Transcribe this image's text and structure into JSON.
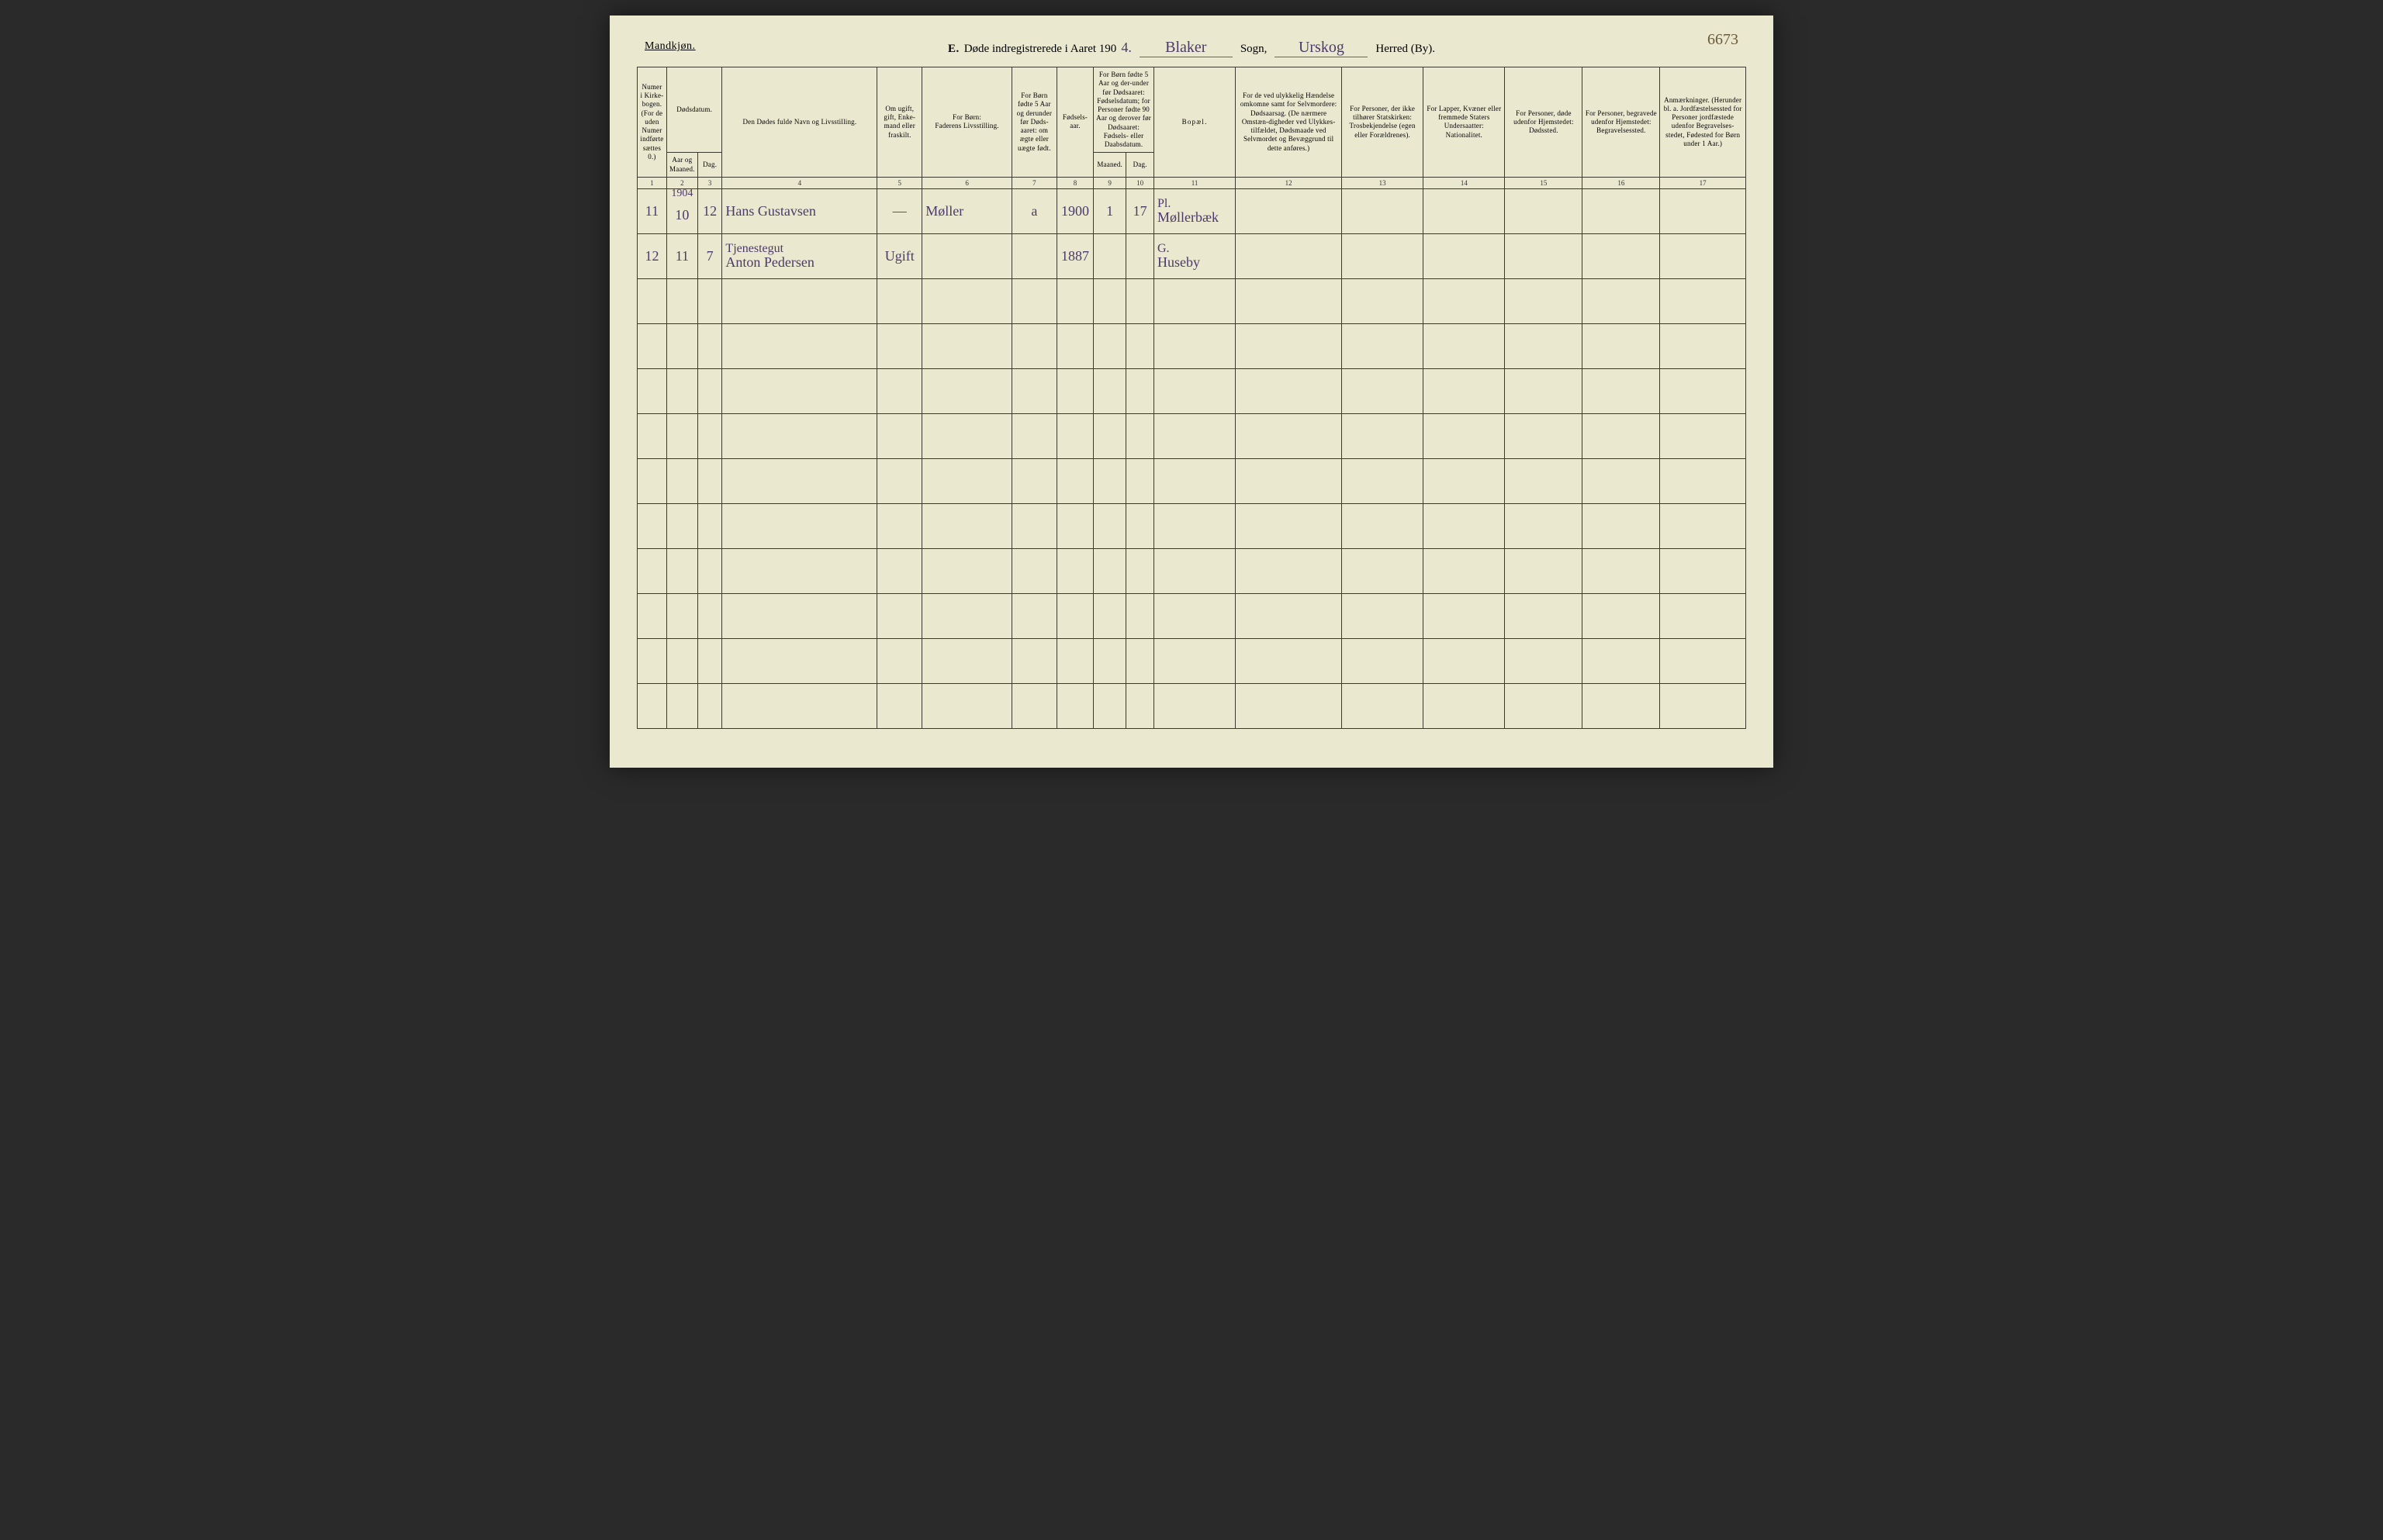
{
  "header": {
    "gender": "Mandkjøn.",
    "title_prefix": "E.",
    "title_text": "Døde indregistrerede i Aaret 190",
    "year_suffix": "4.",
    "parish": "Blaker",
    "parish_label": "Sogn,",
    "district": "Urskog",
    "district_label": "Herred (By).",
    "page_number": "6673"
  },
  "columns": {
    "c1": "Numer i Kirke-bogen. (For de uden Numer indførte sættes 0.)",
    "c2_top": "Dødsdatum.",
    "c2a": "Aar og Maaned.",
    "c2b": "Dag.",
    "c3": "Den Dødes fulde Navn og Livsstilling.",
    "c4": "Om ugift, gift, Enke-mand eller fraskilt.",
    "c5_top": "For Børn:",
    "c5": "Faderens Livsstilling.",
    "c6": "For Børn fødte 5 Aar og derunder før Døds-aaret: om ægte eller uægte født.",
    "c7": "Fødsels-aar.",
    "c8_top": "For Børn fødte 5 Aar og der-under før Dødsaaret: Fødselsdatum; for Personer fødte 90 Aar og derover før Dødsaaret: Fødsels- eller Daabsdatum.",
    "c8a": "Maaned.",
    "c8b": "Dag.",
    "c9": "Bopæl.",
    "c10": "For de ved ulykkelig Hændelse omkomne samt for Selvmordere: Dødsaarsag. (De nærmere Omstæn-digheder ved Ulykkes-tilfældet, Dødsmaade ved Selvmordet og Bevæggrund til dette anføres.)",
    "c11": "For Personer, der ikke tilhører Statskirken: Trosbekjendelse (egen eller Forældrenes).",
    "c12": "For Lapper, Kvæner eller fremmede Staters Undersaatter: Nationalitet.",
    "c13": "For Personer, døde udenfor Hjemstedet: Dødssted.",
    "c14": "For Personer, begravede udenfor Hjemstedet: Begravelsessted.",
    "c15": "Anmærkninger. (Herunder bl. a. Jordfæstelsessted for Personer jordfæstede udenfor Begravelses-stedet, Fødested for Børn under 1 Aar.)"
  },
  "colnums": [
    "1",
    "2",
    "3",
    "4",
    "5",
    "6",
    "7",
    "8",
    "9",
    "10",
    "11",
    "12",
    "13",
    "14",
    "15",
    "16",
    "17"
  ],
  "rows": [
    {
      "num": "11",
      "year_above": "1904",
      "month": "10",
      "day": "12",
      "name": "Hans Gustavsen",
      "occupation": "",
      "status": "—",
      "father": "Møller",
      "legit": "a",
      "birth_year": "1900",
      "birth_month": "1",
      "birth_day": "17",
      "place_prefix": "Pl.",
      "place": "Møllerbæk"
    },
    {
      "num": "12",
      "year_above": "",
      "month": "11",
      "day": "7",
      "name": "Anton Pedersen",
      "occupation": "Tjenestegut",
      "status": "Ugift",
      "father": "",
      "legit": "",
      "birth_year": "1887",
      "birth_month": "",
      "birth_day": "",
      "place_prefix": "G.",
      "place": "Huseby"
    }
  ],
  "blank_rows": 10,
  "style": {
    "paper": "#ebe8d0",
    "ink_print": "#2a2a20",
    "ink_hand": "#4a3a6a",
    "border": "#3a3a30"
  }
}
